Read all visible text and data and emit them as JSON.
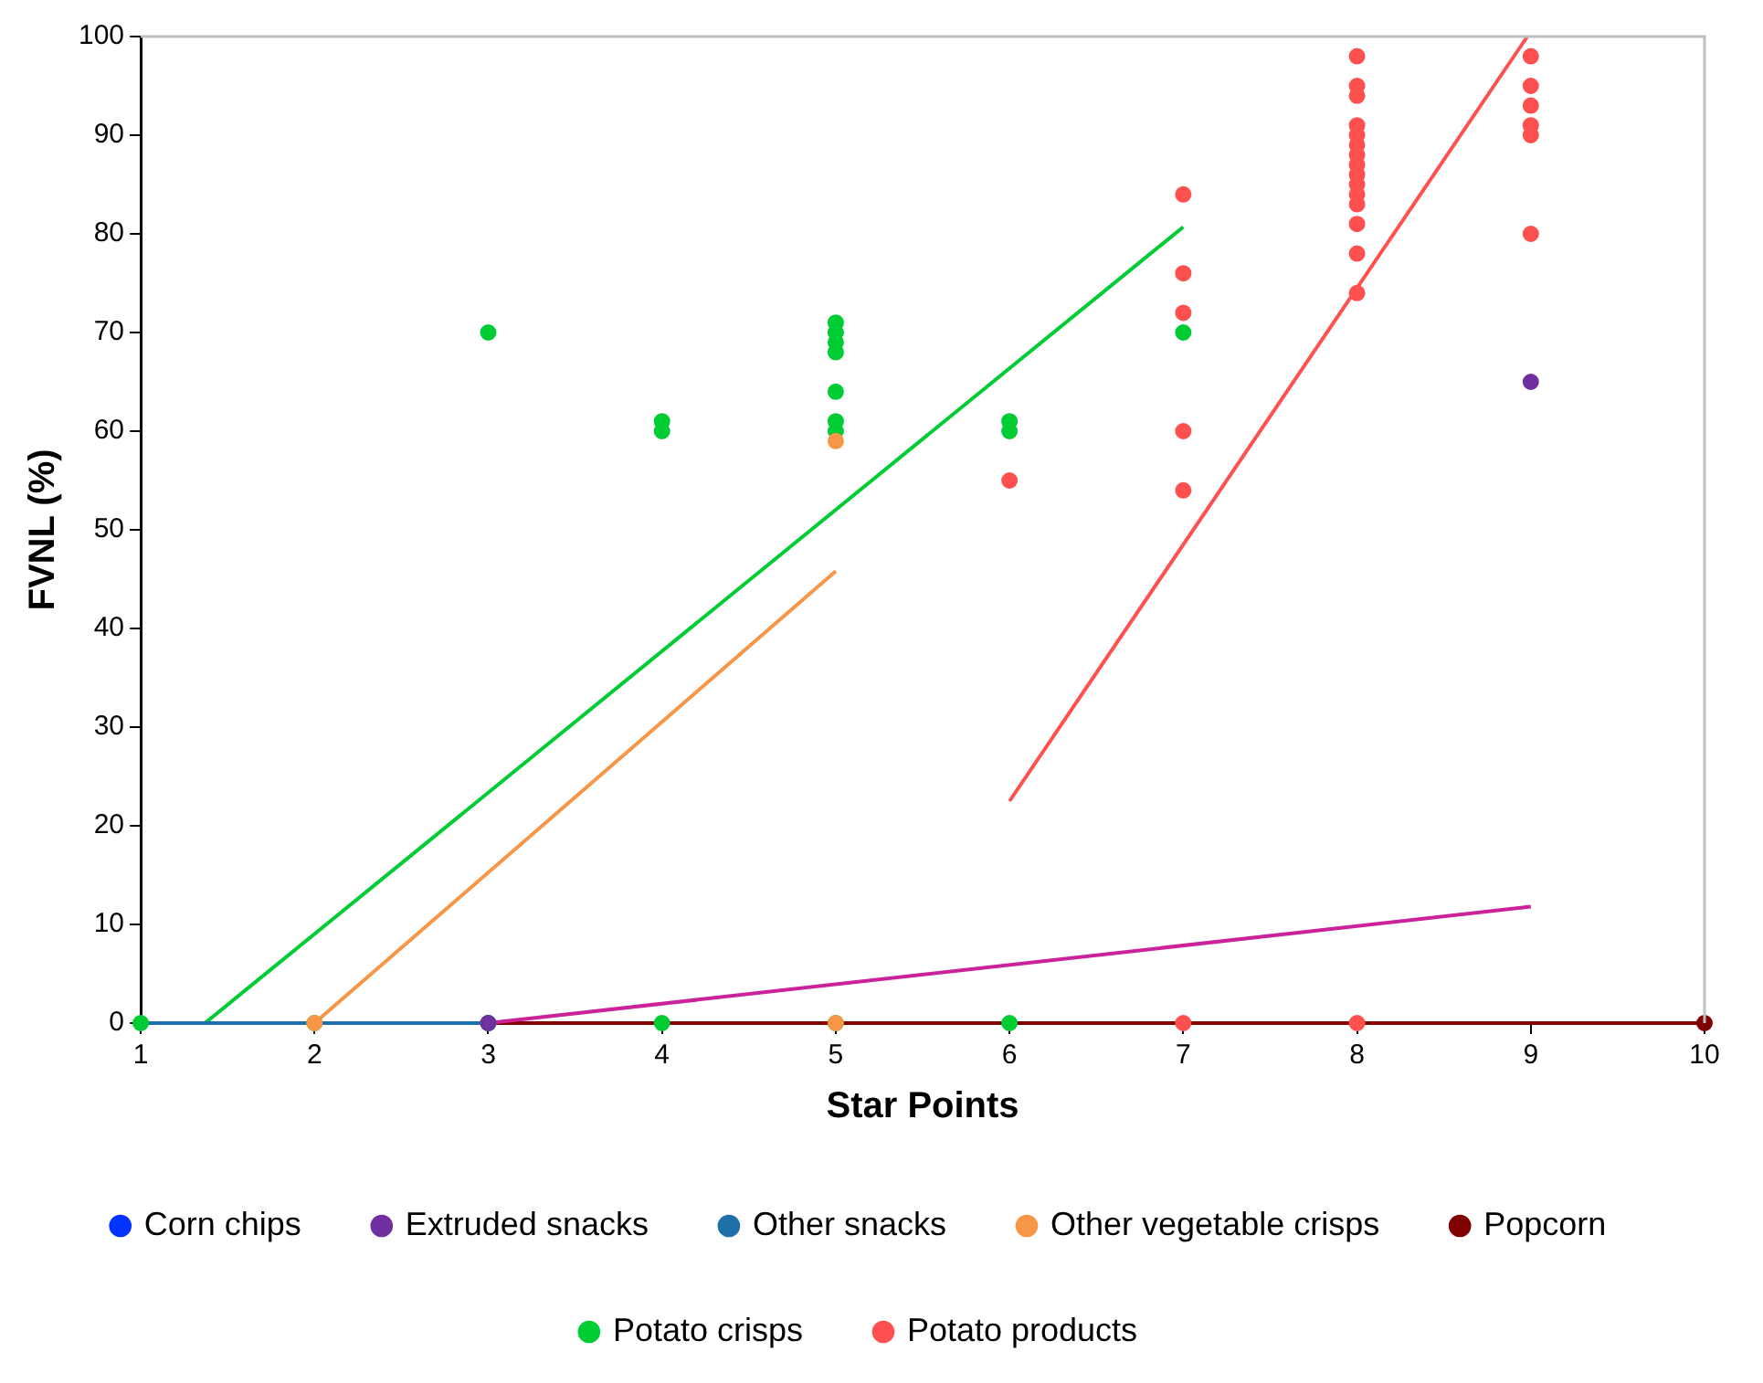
{
  "chart_data": {
    "type": "scatter",
    "xlabel": "Star Points",
    "ylabel": "FVNL (%)",
    "xlim": [
      1,
      10
    ],
    "xticks": [
      1,
      2,
      3,
      4,
      5,
      6,
      7,
      8,
      9,
      10
    ],
    "ylim": [
      0,
      100
    ],
    "yticks": [
      0,
      10,
      20,
      30,
      40,
      50,
      60,
      70,
      80,
      90,
      100
    ],
    "grid": false,
    "legend": "bottom",
    "marker": "circle",
    "series": [
      {
        "name": "Corn chips",
        "color": "#0033ff",
        "type": "scatter"
      },
      {
        "name": "Extruded snacks",
        "color": "#7030a0",
        "type": "scatter",
        "x": [
          3,
          9
        ],
        "values": [
          0,
          65
        ]
      },
      {
        "name": "Other snacks",
        "color": "#1f6fa8",
        "type": "scatter",
        "x": [
          3
        ],
        "values": [
          0
        ]
      },
      {
        "name": "Other vegetable crisps",
        "color": "#f79646",
        "type": "scatter",
        "x": [
          2,
          5,
          5
        ],
        "values": [
          0,
          0,
          59
        ]
      },
      {
        "name": "Popcorn",
        "color": "#800000",
        "type": "scatter",
        "x": [
          10
        ],
        "values": [
          0
        ]
      },
      {
        "name": "Potato crisps",
        "color": "#00cc33",
        "type": "scatter",
        "x": [
          1,
          2,
          3,
          3,
          4,
          4,
          4,
          5,
          5,
          5,
          5,
          5,
          5,
          5,
          5,
          6,
          6,
          6,
          7
        ],
        "values": [
          0,
          0,
          0,
          70,
          0,
          60,
          61,
          0,
          60,
          61,
          64,
          68,
          69,
          70,
          71,
          0,
          60,
          61,
          70
        ]
      },
      {
        "name": "Potato products",
        "color": "#ff5050",
        "type": "scatter",
        "x": [
          6,
          7,
          7,
          7,
          7,
          7,
          7,
          8,
          8,
          8,
          8,
          8,
          8,
          8,
          8,
          8,
          8,
          8,
          8,
          8,
          8,
          8,
          8,
          9,
          9,
          9,
          9,
          9,
          9
        ],
        "values": [
          55,
          84,
          76,
          72,
          60,
          54,
          0,
          98,
          95,
          94,
          91,
          90,
          89,
          88,
          87,
          86,
          85,
          84,
          83,
          81,
          78,
          74,
          0,
          98,
          95,
          93,
          91,
          90,
          80
        ]
      },
      {
        "color": "#1f6fa8",
        "type": "line",
        "marker": "none",
        "x": [
          1,
          3
        ],
        "values": [
          0,
          0
        ]
      },
      {
        "color": "#cc2299",
        "type": "line",
        "marker": "none",
        "x": [
          3,
          9
        ],
        "values": [
          0,
          11.8
        ]
      },
      {
        "color": "#f79646",
        "type": "line",
        "marker": "none",
        "x": [
          2,
          5
        ],
        "values": [
          0,
          45.8
        ]
      },
      {
        "color": "#00cc33",
        "type": "line",
        "marker": "none",
        "x": [
          1.37,
          7
        ],
        "values": [
          0,
          80.7
        ]
      },
      {
        "color": "#ff5050",
        "type": "line",
        "marker": "none",
        "x": [
          6,
          8.98
        ],
        "values": [
          22.5,
          100
        ]
      },
      {
        "color": "#800000",
        "type": "line",
        "marker": "none",
        "x": [
          3,
          10
        ],
        "values": [
          0,
          0
        ]
      }
    ]
  }
}
